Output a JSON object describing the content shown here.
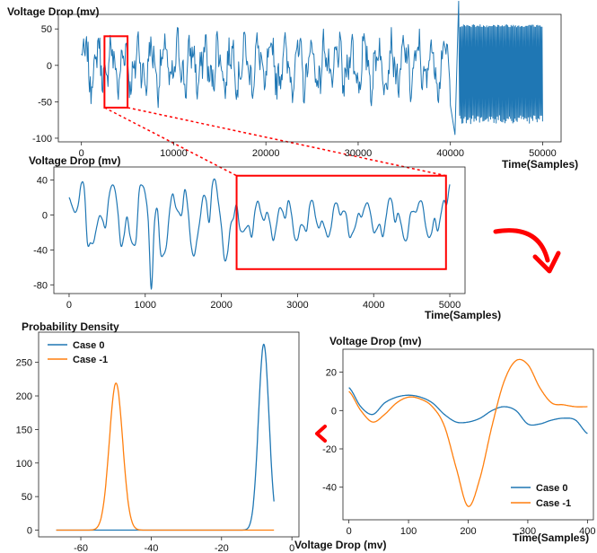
{
  "colors": {
    "blue": "#1f77b4",
    "orange": "#ff7f0e",
    "red": "#ff0000",
    "frame": "#222222"
  },
  "chart_data": [
    {
      "type": "line",
      "ylabel": "Voltage Drop (mv)",
      "xlabel": "Time(Samples)",
      "xlim": [
        -2500,
        52000
      ],
      "ylim": [
        -105,
        70
      ],
      "xticks": [
        0,
        10000,
        20000,
        30000,
        40000,
        50000
      ],
      "yticks": [
        -100,
        -50,
        0,
        50
      ],
      "series": [
        {
          "signal": "dense oscillation approx. -60..55 mv over samples 0-40000, high-frequency band approx. -80..55 mv over samples 40000-50000",
          "x_range": [
            0,
            50000
          ]
        }
      ],
      "highlight": {
        "x": [
          2500,
          5000
        ],
        "y": [
          -58,
          40
        ]
      }
    },
    {
      "type": "line",
      "ylabel": "Voltage Drop (mv)",
      "xlabel": "Time(Samples)",
      "xlim": [
        -200,
        5200
      ],
      "ylim": [
        -90,
        55
      ],
      "xticks": [
        0,
        1000,
        2000,
        3000,
        4000,
        5000
      ],
      "yticks": [
        -80,
        -40,
        0,
        40
      ],
      "highlight": {
        "x": [
          2200,
          4950
        ],
        "y": [
          -62,
          45
        ]
      }
    },
    {
      "type": "line",
      "ylabel": "Probability Density",
      "xlabel": "Voltage Drop (mv)",
      "xlim": [
        -72,
        2
      ],
      "ylim": [
        -10,
        295
      ],
      "xticks": [
        -60,
        -40,
        -20,
        0
      ],
      "yticks": [
        0,
        50,
        100,
        150,
        200,
        250
      ],
      "legend": "top-left",
      "series": [
        {
          "name": "Case 0",
          "color": "#1f77b4",
          "mean": -8,
          "sd": 1.5,
          "peak": 277
        },
        {
          "name": "Case -1",
          "color": "#ff7f0e",
          "mean": -50,
          "sd": 1.9,
          "peak": 219
        }
      ]
    },
    {
      "type": "line",
      "ylabel": "Voltage Drop (mv)",
      "xlabel": "Time(Samples)",
      "xlim": [
        -10,
        410
      ],
      "ylim": [
        -57,
        32
      ],
      "xticks": [
        0,
        100,
        200,
        300,
        400
      ],
      "yticks": [
        -40,
        -20,
        0,
        20
      ],
      "legend": "bottom-right",
      "series": [
        {
          "name": "Case 0",
          "color": "#1f77b4",
          "x": [
            0,
            20,
            40,
            60,
            80,
            100,
            120,
            140,
            160,
            180,
            200,
            220,
            240,
            260,
            280,
            300,
            320,
            340,
            360,
            380,
            400
          ],
          "y": [
            12,
            2,
            -2,
            4,
            7,
            8,
            7,
            4,
            -2,
            -6,
            -6,
            -4,
            0,
            2,
            0,
            -7,
            -7,
            -5,
            -4,
            -5,
            -12
          ]
        },
        {
          "name": "Case -1",
          "color": "#ff7f0e",
          "x": [
            0,
            20,
            40,
            60,
            80,
            100,
            120,
            140,
            160,
            180,
            200,
            220,
            240,
            260,
            280,
            300,
            320,
            340,
            360,
            380,
            400
          ],
          "y": [
            10,
            0,
            -6,
            -2,
            4,
            7,
            6,
            2,
            -8,
            -30,
            -50,
            -35,
            -8,
            15,
            26,
            24,
            12,
            4,
            3,
            2,
            2
          ]
        }
      ]
    }
  ]
}
